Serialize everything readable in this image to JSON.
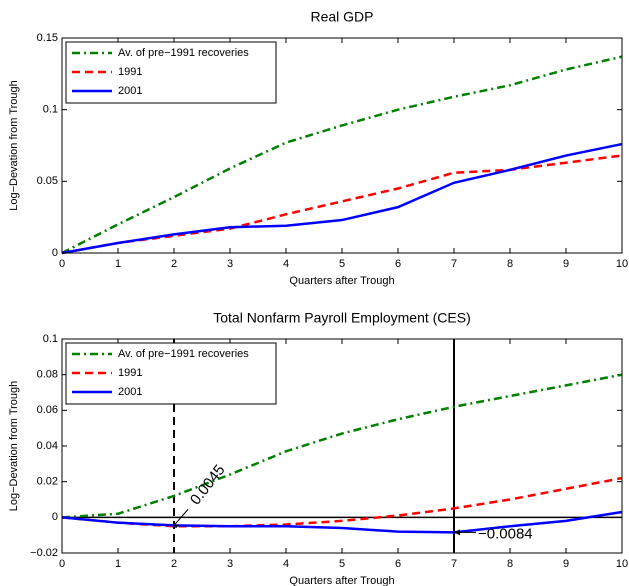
{
  "chart_data": [
    {
      "type": "line",
      "title": "Real GDP",
      "xlabel": "Quarters after Trough",
      "ylabel": "Log−Devation from Trough",
      "x": [
        0,
        1,
        2,
        3,
        4,
        5,
        6,
        7,
        8,
        9,
        10
      ],
      "series": [
        {
          "name": "Av. of pre−1991 recoveries",
          "color": "#008000",
          "linestyle": "dashdot",
          "values": [
            0,
            0.02,
            0.039,
            0.059,
            0.077,
            0.089,
            0.1,
            0.109,
            0.117,
            0.128,
            0.137
          ]
        },
        {
          "name": "1991",
          "color": "#ff0000",
          "linestyle": "dashed",
          "values": [
            0,
            0.007,
            0.012,
            0.017,
            0.027,
            0.036,
            0.045,
            0.056,
            0.058,
            0.063,
            0.068
          ]
        },
        {
          "name": "2001",
          "color": "#0000ff",
          "linestyle": "solid",
          "values": [
            0,
            0.007,
            0.013,
            0.018,
            0.019,
            0.023,
            0.032,
            0.049,
            0.058,
            0.068,
            0.076
          ]
        }
      ],
      "xlim": [
        0,
        10
      ],
      "xticks": [
        0,
        1,
        2,
        3,
        4,
        5,
        6,
        7,
        8,
        9,
        10
      ],
      "ylim": [
        0,
        0.15
      ],
      "yticks": [
        0,
        0.05,
        0.1,
        0.15
      ],
      "grid": false,
      "legend": "upper-left"
    },
    {
      "type": "line",
      "title": "Total Nonfarm Payroll Employment (CES)",
      "xlabel": "Quarters after Trough",
      "ylabel": "Log−Devation from Trough",
      "x": [
        0,
        1,
        2,
        3,
        4,
        5,
        6,
        7,
        8,
        9,
        10
      ],
      "series": [
        {
          "name": "Av. of pre−1991 recoveries",
          "color": "#008000",
          "linestyle": "dashdot",
          "values": [
            0,
            0.002,
            0.012,
            0.024,
            0.037,
            0.047,
            0.055,
            0.062,
            0.068,
            0.074,
            0.08
          ]
        },
        {
          "name": "1991",
          "color": "#ff0000",
          "linestyle": "dashed",
          "values": [
            0,
            -0.003,
            -0.005,
            -0.005,
            -0.004,
            -0.002,
            0.001,
            0.005,
            0.01,
            0.016,
            0.022
          ]
        },
        {
          "name": "2001",
          "color": "#0000ff",
          "linestyle": "solid",
          "values": [
            0,
            -0.003,
            -0.0045,
            -0.005,
            -0.005,
            -0.006,
            -0.008,
            -0.0084,
            -0.005,
            -0.002,
            0.003
          ]
        }
      ],
      "xlim": [
        0,
        10
      ],
      "xticks": [
        0,
        1,
        2,
        3,
        4,
        5,
        6,
        7,
        8,
        9,
        10
      ],
      "ylim": [
        -0.02,
        0.1
      ],
      "yticks": [
        {
          "value": -0.02,
          "label": "−0.02"
        },
        0,
        0.02,
        0.04,
        0.06,
        0.08,
        0.1
      ],
      "grid": false,
      "legend": "upper-left",
      "hlines": [
        {
          "y": 0,
          "linestyle": "solid"
        }
      ],
      "vlines": [
        {
          "x": 2,
          "linestyle": "dashed"
        },
        {
          "x": 7,
          "linestyle": "solid"
        }
      ],
      "annotations": [
        {
          "text": "0.0045",
          "x": 2,
          "y": -0.0045
        },
        {
          "text": "−0.0084",
          "x": 7,
          "y": -0.0084
        }
      ]
    }
  ]
}
